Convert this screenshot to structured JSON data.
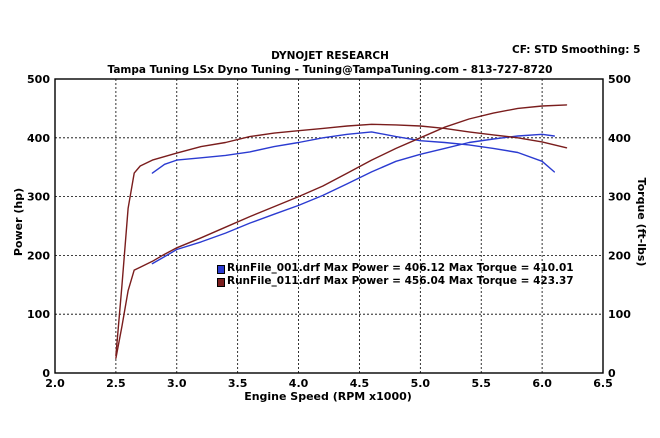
{
  "header": {
    "title": "DYNOJET RESEARCH",
    "subtitle": "Tampa Tuning LSx Dyno Tuning - Tuning@TampaTuning.com - 813-727-8720",
    "settings": "CF: STD  Smoothing: 5"
  },
  "legend": [
    {
      "text": "RunFile_001.drf Max Power = 406.12     Max Torque = 410.01",
      "color": "#2b3bd1"
    },
    {
      "text": "RunFile_011.drf Max Power = 456.04     Max Torque = 423.37",
      "color": "#7a1d1d"
    }
  ],
  "chart_data": {
    "type": "line",
    "xlabel": "Engine Speed (RPM x1000)",
    "ylabel": "Power (hp)",
    "y2label": "Torque (ft-lbs)",
    "xlim": [
      2.0,
      6.5
    ],
    "ylim": [
      0,
      500
    ],
    "y2lim": [
      0,
      500
    ],
    "xticks": [
      "2.0",
      "2.5",
      "3.0",
      "3.5",
      "4.0",
      "4.5",
      "5.0",
      "5.5",
      "6.0",
      "6.5"
    ],
    "yticks": [
      "0",
      "100",
      "200",
      "300",
      "400",
      "500"
    ],
    "grid": true,
    "series": [
      {
        "name": "RunFile_001.drf Power",
        "color": "#2b3bd1",
        "x": [
          2.8,
          2.9,
          3.0,
          3.2,
          3.4,
          3.6,
          3.8,
          4.0,
          4.2,
          4.4,
          4.6,
          4.8,
          5.0,
          5.2,
          5.4,
          5.6,
          5.8,
          6.0,
          6.1
        ],
        "y": [
          186,
          198,
          210,
          223,
          238,
          255,
          270,
          285,
          302,
          322,
          342,
          360,
          372,
          382,
          392,
          398,
          403,
          406,
          403
        ]
      },
      {
        "name": "RunFile_001.drf Torque",
        "color": "#2b3bd1",
        "x": [
          2.8,
          2.9,
          3.0,
          3.2,
          3.4,
          3.6,
          3.8,
          4.0,
          4.2,
          4.4,
          4.6,
          4.8,
          5.0,
          5.2,
          5.4,
          5.6,
          5.8,
          6.0,
          6.1
        ],
        "y": [
          340,
          355,
          362,
          366,
          370,
          376,
          385,
          392,
          400,
          406,
          410,
          402,
          395,
          392,
          388,
          382,
          375,
          360,
          342
        ]
      },
      {
        "name": "RunFile_011.drf Power",
        "color": "#7a1d1d",
        "x": [
          2.5,
          2.55,
          2.6,
          2.65,
          2.7,
          2.8,
          2.9,
          3.0,
          3.2,
          3.4,
          3.6,
          3.8,
          4.0,
          4.2,
          4.4,
          4.6,
          4.8,
          5.0,
          5.2,
          5.4,
          5.6,
          5.8,
          6.0,
          6.2
        ],
        "y": [
          25,
          80,
          140,
          175,
          180,
          190,
          202,
          213,
          230,
          248,
          266,
          283,
          300,
          318,
          340,
          362,
          382,
          400,
          418,
          432,
          442,
          450,
          454,
          456
        ]
      },
      {
        "name": "RunFile_011.drf Torque",
        "color": "#7a1d1d",
        "x": [
          2.5,
          2.55,
          2.6,
          2.65,
          2.7,
          2.8,
          3.0,
          3.2,
          3.4,
          3.6,
          3.8,
          4.0,
          4.2,
          4.4,
          4.6,
          4.8,
          5.0,
          5.2,
          5.4,
          5.6,
          5.8,
          6.0,
          6.2
        ],
        "y": [
          30,
          150,
          280,
          340,
          352,
          362,
          374,
          385,
          392,
          402,
          408,
          412,
          416,
          420,
          423,
          422,
          420,
          416,
          410,
          405,
          400,
          393,
          383
        ]
      }
    ]
  }
}
